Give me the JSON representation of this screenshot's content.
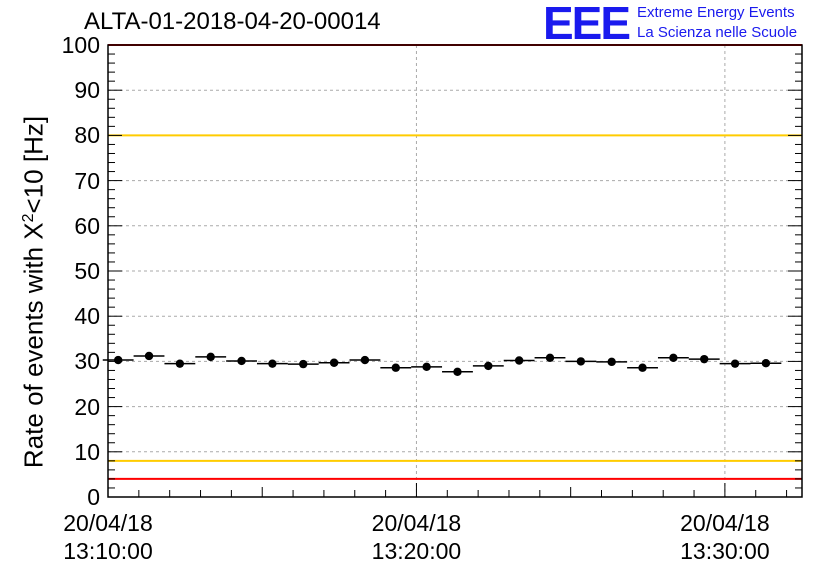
{
  "title": "ALTA-01-2018-04-20-00014",
  "logo": {
    "text": "EEE",
    "line1": "Extreme Energy Events",
    "line2": "La Scienza nelle Scuole",
    "color": "#1a1aee"
  },
  "chart_data": {
    "type": "scatter",
    "title": "ALTA-01-2018-04-20-00014",
    "ylabel_main": "Rate of events with X",
    "ylabel_sup": "2",
    "ylabel_tail": "<10 [Hz]",
    "ylim": [
      0,
      100
    ],
    "yticks": [
      0,
      10,
      20,
      30,
      40,
      50,
      60,
      70,
      80,
      90,
      100
    ],
    "xlim_minutes": [
      0,
      22.5
    ],
    "xticks": [
      {
        "minute": 0,
        "date": "20/04/18",
        "time": "13:10:00"
      },
      {
        "minute": 10,
        "date": "20/04/18",
        "time": "13:20:00"
      },
      {
        "minute": 20,
        "date": "20/04/18",
        "time": "13:30:00"
      }
    ],
    "x_bin_width_minutes": 1,
    "points": [
      {
        "x": 0.33,
        "y": 30.3
      },
      {
        "x": 1.33,
        "y": 31.2
      },
      {
        "x": 2.33,
        "y": 29.5
      },
      {
        "x": 3.33,
        "y": 31.0
      },
      {
        "x": 4.33,
        "y": 30.1
      },
      {
        "x": 5.33,
        "y": 29.5
      },
      {
        "x": 6.33,
        "y": 29.4
      },
      {
        "x": 7.33,
        "y": 29.7
      },
      {
        "x": 8.33,
        "y": 30.3
      },
      {
        "x": 9.33,
        "y": 28.6
      },
      {
        "x": 10.33,
        "y": 28.8
      },
      {
        "x": 11.33,
        "y": 27.7
      },
      {
        "x": 12.33,
        "y": 29.0
      },
      {
        "x": 13.33,
        "y": 30.2
      },
      {
        "x": 14.33,
        "y": 30.8
      },
      {
        "x": 15.33,
        "y": 30.0
      },
      {
        "x": 16.33,
        "y": 29.9
      },
      {
        "x": 17.33,
        "y": 28.6
      },
      {
        "x": 18.33,
        "y": 30.8
      },
      {
        "x": 19.33,
        "y": 30.5
      },
      {
        "x": 20.33,
        "y": 29.5
      },
      {
        "x": 21.33,
        "y": 29.6
      }
    ],
    "reference_lines": [
      {
        "y": 100,
        "color": "#ff0000"
      },
      {
        "y": 80,
        "color": "#ffcc00"
      },
      {
        "y": 8,
        "color": "#ffcc00"
      },
      {
        "y": 4,
        "color": "#ff0000"
      }
    ],
    "grid": true,
    "legend": "none"
  }
}
